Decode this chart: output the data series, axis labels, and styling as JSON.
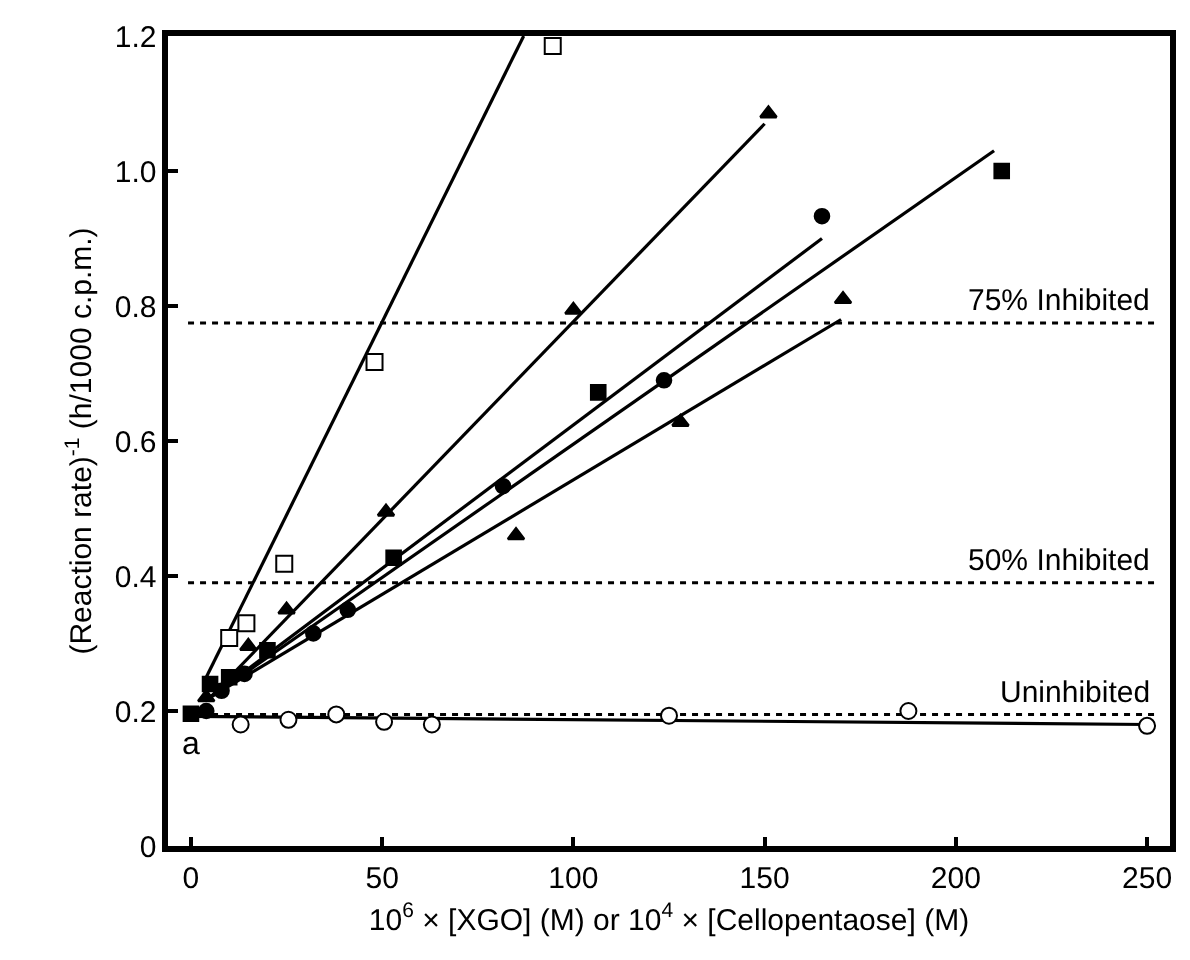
{
  "chart_data": {
    "type": "scatter",
    "xlabel": "10$^{6}$ × [XGO] (M) or 10$^{4}$ × [Cellopentaose] (M)",
    "ylabel": "(Reaction rate)$^{-1}$ (h/1000 c.p.m.)",
    "xlim": [
      -6,
      256
    ],
    "xticks": [
      0,
      50,
      100,
      150,
      200,
      250
    ],
    "ylim": [
      0,
      1.2
    ],
    "yticks": [
      0,
      0.2,
      0.4,
      0.6,
      0.8,
      {
        "value": 1.0,
        "label": "1.0"
      },
      1.2
    ],
    "grid": false,
    "annotations": [
      "a"
    ],
    "ref_lines": [
      {
        "axis": "y",
        "value": 0.195,
        "label": "Uninhibited",
        "line_style": "dotted",
        "color": "#000000"
      },
      {
        "axis": "y",
        "value": 0.39,
        "label": "50% Inhibited",
        "line_style": "dotted",
        "color": "#000000"
      },
      {
        "axis": "y",
        "value": 0.775,
        "label": "75% Inhibited",
        "line_style": "dotted",
        "color": "#000000"
      }
    ],
    "series": [
      {
        "marker": "square",
        "color": "#ffffff",
        "x": [
          10,
          14.5,
          24.4,
          48,
          94.6
        ],
        "values": [
          0.308,
          0.33,
          0.418,
          0.717,
          1.185
        ]
      },
      {
        "marker": "triangle",
        "color": "#000000",
        "x": [
          4,
          15,
          25,
          51,
          100,
          151
        ],
        "values": [
          0.22,
          0.296,
          0.35,
          0.495,
          0.794,
          1.085
        ]
      },
      {
        "marker": "triangle",
        "color": "#000000",
        "x": [
          85,
          128,
          170.5
        ],
        "values": [
          0.46,
          0.628,
          0.81
        ]
      },
      {
        "marker": "circle",
        "color": "#000000",
        "x": [
          4,
          8,
          14,
          22,
          32,
          41,
          81.6,
          123.7,
          165
        ],
        "values": [
          0.2,
          0.23,
          0.255,
          null,
          0.315,
          0.35,
          0.533,
          0.69,
          0.933
        ]
      },
      {
        "marker": "square",
        "color": "#000000",
        "x": [
          0,
          5,
          10,
          20,
          53,
          106.5,
          212
        ],
        "values": [
          0.196,
          0.24,
          0.25,
          0.29,
          0.427,
          0.672,
          1.0
        ]
      },
      {
        "marker": "circle",
        "color": "#ffffff",
        "x": [
          13,
          25.5,
          38,
          50.5,
          63,
          125,
          187.6,
          250
        ],
        "values": [
          0.18,
          0.187,
          0.195,
          0.184,
          0.18,
          0.193,
          0.2,
          0.178
        ]
      },
      {
        "type": "line",
        "color": "#000000",
        "x": [
          4,
          87
        ],
        "values": [
          0.25,
          1.2
        ]
      },
      {
        "type": "line",
        "color": "#000000",
        "x": [
          5,
          150
        ],
        "values": [
          0.22,
          1.07
        ]
      },
      {
        "type": "line",
        "color": "#000000",
        "x": [
          5,
          170
        ],
        "values": [
          0.22,
          0.78
        ]
      },
      {
        "type": "line",
        "color": "#000000",
        "x": [
          5,
          165
        ],
        "values": [
          0.22,
          0.9
        ]
      },
      {
        "type": "line",
        "color": "#000000",
        "x": [
          5,
          210
        ],
        "values": [
          0.22,
          1.03
        ]
      },
      {
        "type": "line",
        "color": "#000000",
        "x": [
          0,
          250
        ],
        "values": [
          0.192,
          0.18
        ]
      }
    ]
  }
}
